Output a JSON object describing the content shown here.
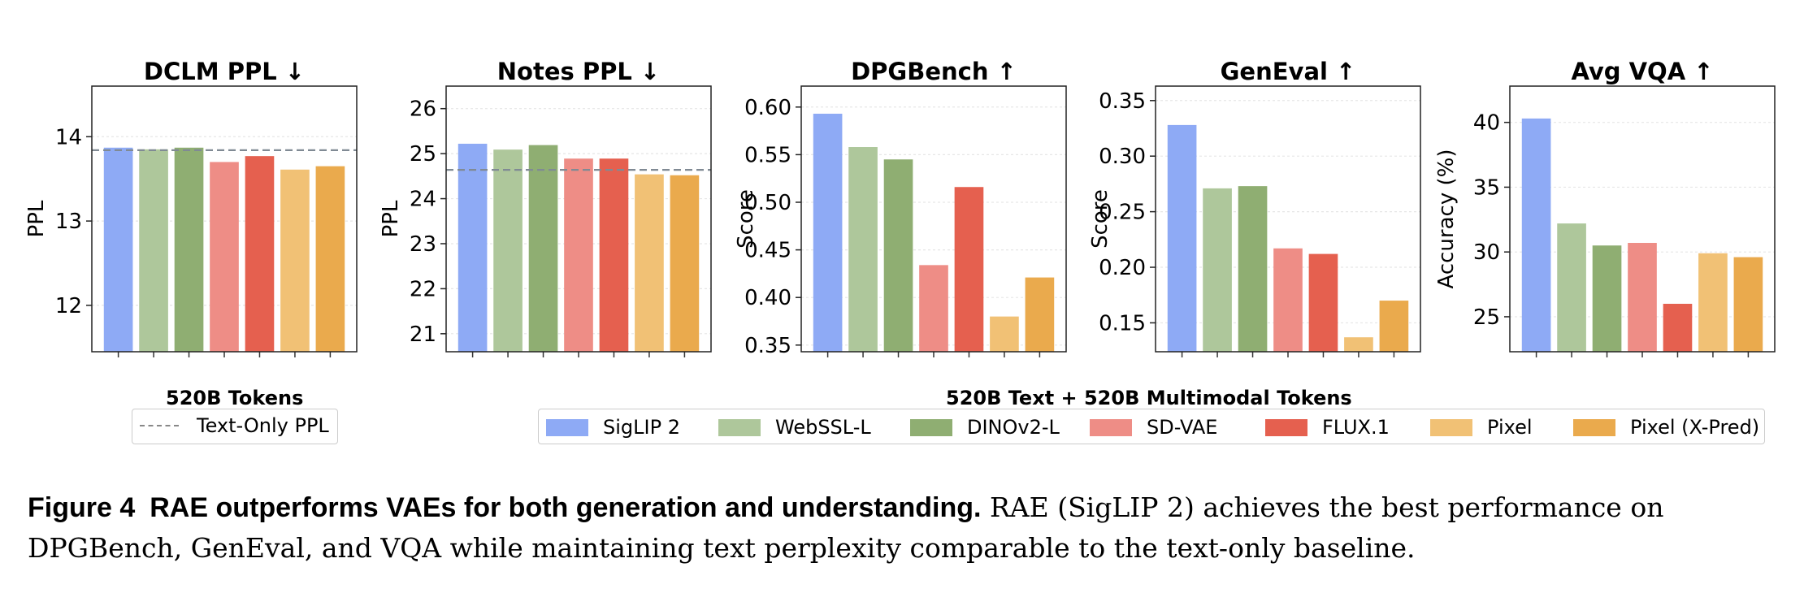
{
  "colors": {
    "SigLIP 2": "#8eaaf5",
    "WebSSL-L": "#aec79b",
    "DINOv2-L": "#8fae72",
    "SD-VAE": "#ee8d86",
    "FLUX.1": "#e5604f",
    "Pixel": "#f1c175",
    "Pixel (X-Pred)": "#eaaa4d",
    "baseline": "#808a94"
  },
  "chart_data": [
    {
      "type": "bar",
      "title": "DCLM PPL ↓",
      "xlabel": "",
      "ylabel": "PPL",
      "ylim": [
        11.45,
        14.6
      ],
      "yticks": [
        12,
        13,
        14
      ],
      "categories": [
        "SigLIP 2",
        "WebSSL-L",
        "DINOv2-L",
        "SD-VAE",
        "FLUX.1",
        "Pixel",
        "Pixel (X-Pred)"
      ],
      "values": [
        13.87,
        13.85,
        13.87,
        13.7,
        13.77,
        13.61,
        13.65
      ],
      "baseline": 13.84
    },
    {
      "type": "bar",
      "title": "Notes PPL ↓",
      "xlabel": "",
      "ylabel": "PPL",
      "ylim": [
        20.6,
        26.5
      ],
      "yticks": [
        21,
        22,
        23,
        24,
        25,
        26
      ],
      "categories": [
        "SigLIP 2",
        "WebSSL-L",
        "DINOv2-L",
        "SD-VAE",
        "FLUX.1",
        "Pixel",
        "Pixel (X-Pred)"
      ],
      "values": [
        25.22,
        25.09,
        25.19,
        24.89,
        24.89,
        24.54,
        24.52
      ],
      "baseline": 24.64
    },
    {
      "type": "bar",
      "title": "DPGBench ↑",
      "xlabel": "",
      "ylabel": "Score",
      "ylim": [
        0.343,
        0.622
      ],
      "yticks": [
        0.35,
        0.4,
        0.45,
        0.5,
        0.55,
        0.6
      ],
      "tick_labels": [
        "0.35",
        "0.40",
        "0.45",
        "0.50",
        "0.55",
        "0.60"
      ],
      "categories": [
        "SigLIP 2",
        "WebSSL-L",
        "DINOv2-L",
        "SD-VAE",
        "FLUX.1",
        "Pixel",
        "Pixel (X-Pred)"
      ],
      "values": [
        0.593,
        0.558,
        0.545,
        0.434,
        0.516,
        0.38,
        0.421
      ]
    },
    {
      "type": "bar",
      "title": "GenEval ↑",
      "xlabel": "",
      "ylabel": "Score",
      "ylim": [
        0.124,
        0.363
      ],
      "yticks": [
        0.15,
        0.2,
        0.25,
        0.3,
        0.35
      ],
      "tick_labels": [
        "0.15",
        "0.20",
        "0.25",
        "0.30",
        "0.35"
      ],
      "categories": [
        "SigLIP 2",
        "WebSSL-L",
        "DINOv2-L",
        "SD-VAE",
        "FLUX.1",
        "Pixel",
        "Pixel (X-Pred)"
      ],
      "values": [
        0.328,
        0.271,
        0.273,
        0.217,
        0.212,
        0.137,
        0.17
      ]
    },
    {
      "type": "bar",
      "title": "Avg VQA ↑",
      "xlabel": "",
      "ylabel": "Accuracy (%)",
      "ylim": [
        22.3,
        42.8
      ],
      "yticks": [
        25,
        30,
        35,
        40
      ],
      "categories": [
        "SigLIP 2",
        "WebSSL-L",
        "DINOv2-L",
        "SD-VAE",
        "FLUX.1",
        "Pixel",
        "Pixel (X-Pred)"
      ],
      "values": [
        40.3,
        32.2,
        30.5,
        30.7,
        26.0,
        29.9,
        29.6
      ]
    }
  ],
  "legend_left": {
    "title": "520B Tokens",
    "entry": "Text-Only PPL"
  },
  "legend_right": {
    "title": "520B Text + 520B Multimodal Tokens",
    "entries": [
      "SigLIP 2",
      "WebSSL-L",
      "DINOv2-L",
      "SD-VAE",
      "FLUX.1",
      "Pixel",
      "Pixel (X-Pred)"
    ]
  },
  "caption": {
    "label": "Figure 4",
    "headline": "RAE outperforms VAEs for both generation and understanding.",
    "text": "RAE (SigLIP 2) achieves the best performance on DPGBench, GenEval, and VQA while maintaining text perplexity comparable to the text-only baseline."
  }
}
